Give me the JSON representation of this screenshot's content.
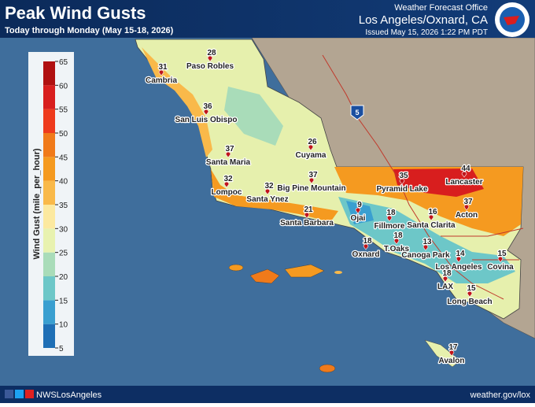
{
  "header": {
    "title": "Peak Wind Gusts",
    "subtitle": "Today through Monday (May 15-18, 2026)",
    "office": "Weather Forecast Office",
    "location": "Los Angeles/Oxnard, CA",
    "issued": "Issued May 15, 2026 1:22 PM PDT"
  },
  "legend": {
    "title": "Wind Gust (mile_per_hour)",
    "ticks": [
      5,
      10,
      15,
      20,
      25,
      30,
      35,
      40,
      45,
      50,
      55,
      60,
      65
    ]
  },
  "interstate_shield": "5",
  "cities": [
    {
      "name": "Cambria",
      "value": 31
    },
    {
      "name": "Paso Robles",
      "value": 28
    },
    {
      "name": "San Luis Obispo",
      "value": 36
    },
    {
      "name": "Santa Maria",
      "value": 37
    },
    {
      "name": "Lompoc",
      "value": 32
    },
    {
      "name": "Santa Ynez",
      "value": 32
    },
    {
      "name": "Big Pine Mountain",
      "value": 37
    },
    {
      "name": "Cuyama",
      "value": 26
    },
    {
      "name": "Santa Barbara",
      "value": 21
    },
    {
      "name": "Ojai",
      "value": 9
    },
    {
      "name": "Fillmore",
      "value": 18
    },
    {
      "name": "Pyramid Lake",
      "value": 35
    },
    {
      "name": "Lancaster",
      "value": 44
    },
    {
      "name": "Acton",
      "value": 37
    },
    {
      "name": "Santa Clarita",
      "value": 16
    },
    {
      "name": "Oxnard",
      "value": 18
    },
    {
      "name": "T.Oaks",
      "value": 18
    },
    {
      "name": "Canoga Park",
      "value": 13
    },
    {
      "name": "Los Angeles",
      "value": 14
    },
    {
      "name": "Covina",
      "value": 15
    },
    {
      "name": "LAX",
      "value": 18
    },
    {
      "name": "Long Beach",
      "value": 15
    },
    {
      "name": "Avalon",
      "value": 17
    }
  ],
  "footer": {
    "handle": "NWSLosAngeles",
    "url": "weather.gov/lox"
  }
}
